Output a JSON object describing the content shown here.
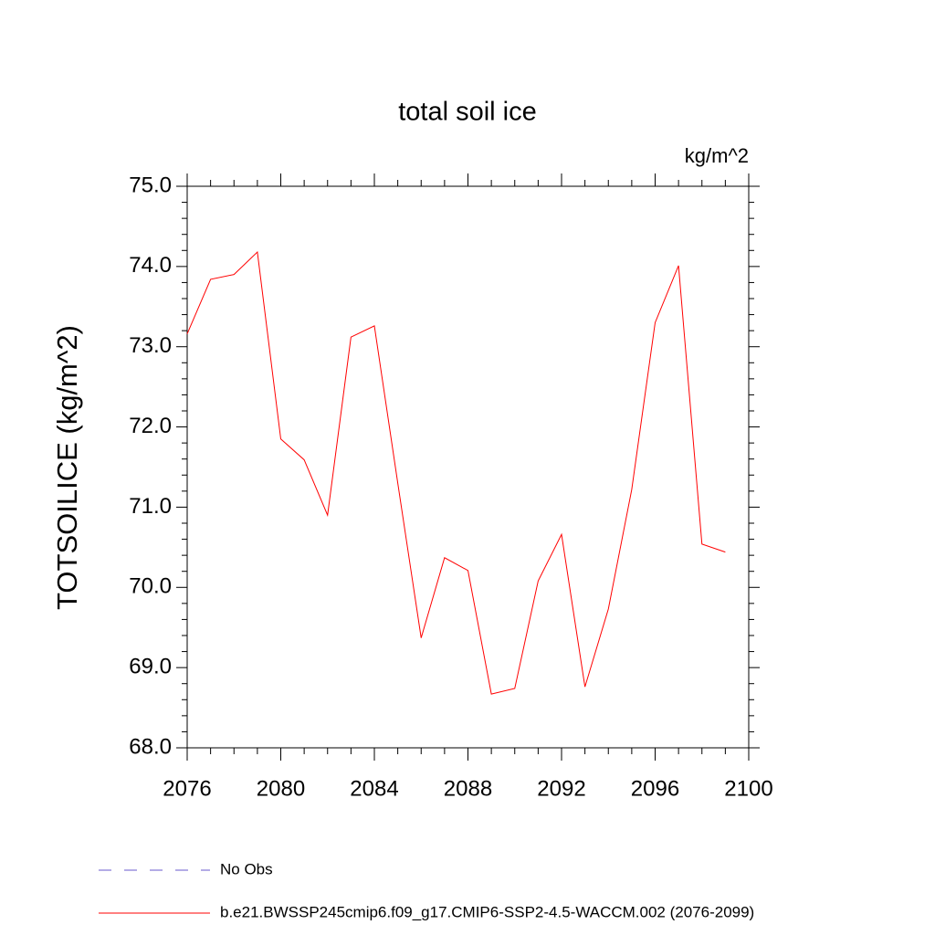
{
  "chart_data": {
    "type": "line",
    "title": "total soil ice",
    "units": "kg/m^2",
    "y_label": "TOTSOILICE  (kg/m^2)",
    "x": [
      2076,
      2077,
      2078,
      2079,
      2080,
      2081,
      2082,
      2083,
      2084,
      2085,
      2086,
      2087,
      2088,
      2089,
      2090,
      2091,
      2092,
      2093,
      2094,
      2095,
      2096,
      2097,
      2098,
      2099
    ],
    "series": [
      {
        "name": "b.e21.BWSSP245cmip6.f09_g17.CMIP6-SSP2-4.5-WACCM.002 (2076-2099)",
        "color": "#ff0000",
        "values": [
          73.16,
          73.84,
          73.9,
          74.18,
          71.85,
          71.59,
          70.9,
          73.12,
          73.26,
          71.3,
          69.37,
          70.37,
          70.21,
          68.67,
          68.74,
          70.08,
          70.66,
          68.76,
          69.73,
          71.22,
          73.3,
          74.01,
          70.54,
          70.44
        ]
      }
    ],
    "legend_extra": [
      {
        "name": "No Obs",
        "color": "#6a5acd",
        "style": "dashed"
      }
    ],
    "xlim": [
      2076,
      2100
    ],
    "xticks": [
      2076,
      2080,
      2084,
      2088,
      2092,
      2096,
      2100
    ],
    "xminorticks": [
      2077,
      2078,
      2079,
      2081,
      2082,
      2083,
      2085,
      2086,
      2087,
      2089,
      2090,
      2091,
      2093,
      2094,
      2095,
      2097,
      2098,
      2099
    ],
    "ylim": [
      68,
      75
    ],
    "yticks": [
      {
        "value": 68,
        "label": "68.0"
      },
      {
        "value": 69,
        "label": "69.0"
      },
      {
        "value": 70,
        "label": "70.0"
      },
      {
        "value": 71,
        "label": "71.0"
      },
      {
        "value": 72,
        "label": "72.0"
      },
      {
        "value": 73,
        "label": "73.0"
      },
      {
        "value": 74,
        "label": "74.0"
      },
      {
        "value": 75,
        "label": "75.0"
      }
    ],
    "yminorticks": [
      68.2,
      68.4,
      68.6,
      68.8,
      69.2,
      69.4,
      69.6,
      69.8,
      70.2,
      70.4,
      70.6,
      70.8,
      71.2,
      71.4,
      71.6,
      71.8,
      72.2,
      72.4,
      72.6,
      72.8,
      73.2,
      73.4,
      73.6,
      73.8,
      74.2,
      74.4,
      74.6,
      74.8
    ],
    "grid": false
  }
}
